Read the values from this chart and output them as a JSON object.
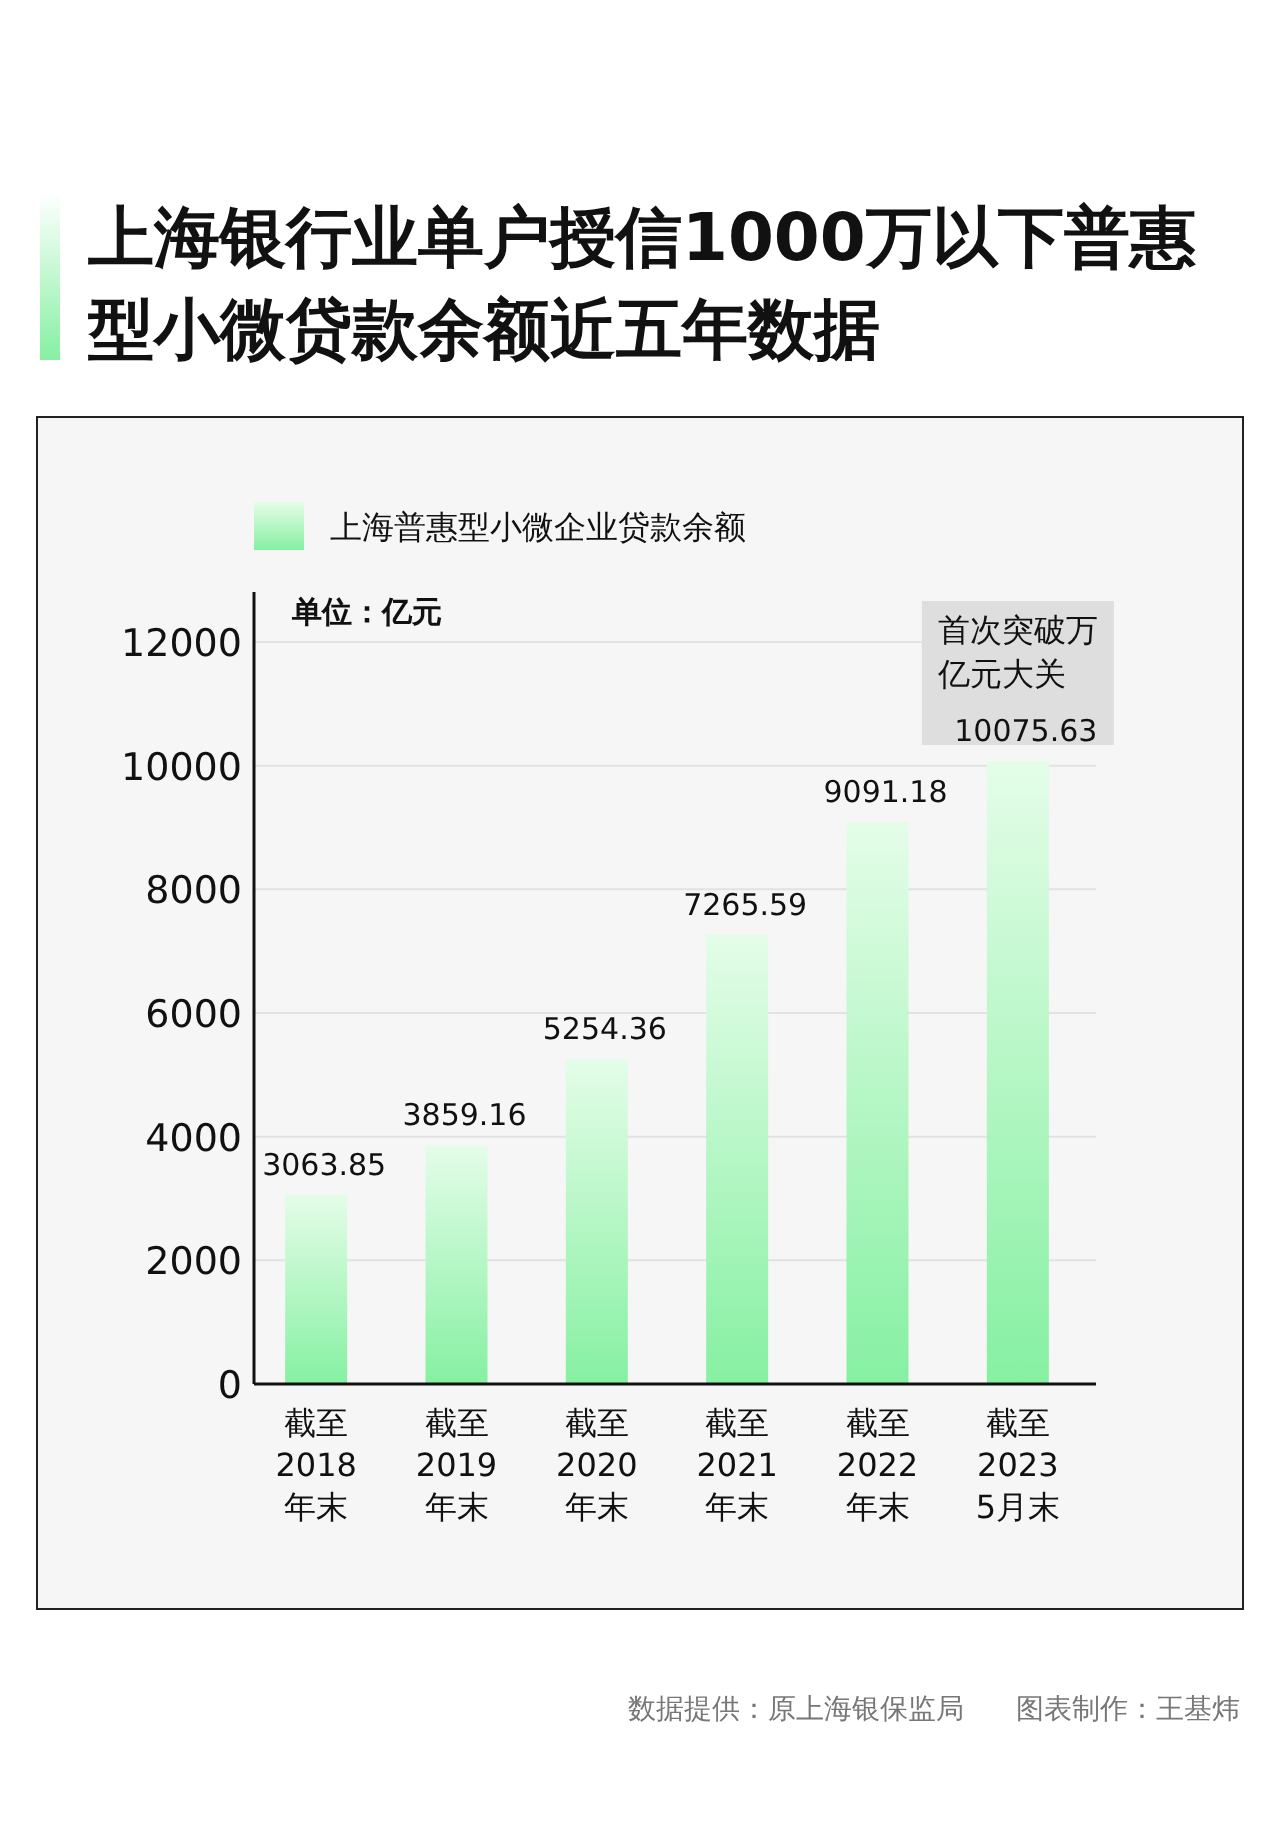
{
  "chart_data": {
    "type": "bar",
    "title": "上海银行业单户授信1000万以下普惠型小微贷款余额近五年数据",
    "ylabel": "单位：亿元",
    "categories": [
      "截至\n2018\n年末",
      "截至\n2019\n年末",
      "截至\n2020\n年末",
      "截至\n2021\n年末",
      "截至\n2022\n年末",
      "截至\n2023\n5月末"
    ],
    "series": [
      {
        "name": "上海普惠型小微企业贷款余额",
        "color": "#86f0a2",
        "values": [
          3063.85,
          3859.16,
          5254.36,
          7265.59,
          9091.18,
          10075.63
        ]
      }
    ],
    "ylim": [
      0,
      12000
    ],
    "yticks": [
      0,
      2000,
      4000,
      6000,
      8000,
      10000,
      12000
    ],
    "grid": "y",
    "legend": "top left",
    "data_labels": true,
    "annotations": [
      {
        "text": "首次突破万亿元大关",
        "x": "截至\n2023\n5月末",
        "y": 10075.63
      },
      "数据提供：原上海银保监局",
      "图表制作：王基炜"
    ]
  }
}
